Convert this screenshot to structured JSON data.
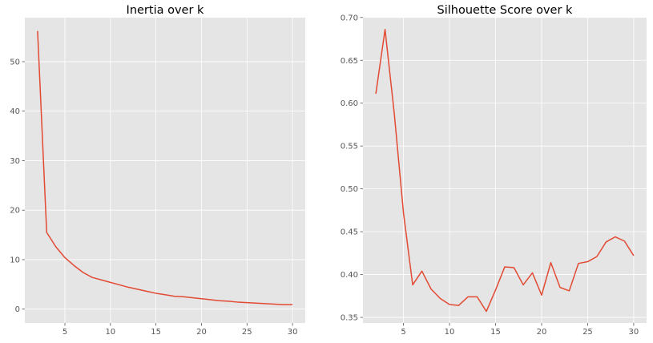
{
  "chart_data": [
    {
      "type": "line",
      "title": "Inertia over k",
      "xlabel": "",
      "ylabel": "",
      "xlim": [
        0.6,
        31.4
      ],
      "ylim": [
        -2.8,
        58.9
      ],
      "xticks": [
        5,
        10,
        15,
        20,
        25,
        30
      ],
      "yticks": [
        0,
        10,
        20,
        30,
        40,
        50
      ],
      "ytick_decimals": 0,
      "grid": true,
      "color": "#E24A33",
      "series": [
        {
          "x": [
            2,
            3,
            4,
            5,
            6,
            7,
            8,
            9,
            10,
            11,
            12,
            13,
            14,
            15,
            16,
            17,
            18,
            19,
            20,
            21,
            22,
            23,
            24,
            25,
            26,
            27,
            28,
            29,
            30
          ],
          "y": [
            56.2,
            15.5,
            12.6,
            10.4,
            8.8,
            7.4,
            6.4,
            5.9,
            5.4,
            4.9,
            4.4,
            4.0,
            3.6,
            3.2,
            2.9,
            2.6,
            2.5,
            2.3,
            2.1,
            1.9,
            1.7,
            1.6,
            1.4,
            1.3,
            1.2,
            1.1,
            1.0,
            0.9,
            0.9
          ]
        }
      ]
    },
    {
      "type": "line",
      "title": "Silhouette Score over k",
      "xlabel": "",
      "ylabel": "",
      "xlim": [
        0.6,
        31.4
      ],
      "ylim": [
        0.3435,
        0.6998
      ],
      "xticks": [
        5,
        10,
        15,
        20,
        25,
        30
      ],
      "yticks": [
        0.35,
        0.4,
        0.45,
        0.5,
        0.55,
        0.6,
        0.65,
        0.7
      ],
      "ytick_decimals": 2,
      "grid": true,
      "color": "#E24A33",
      "series": [
        {
          "x": [
            2,
            3,
            4,
            5,
            6,
            7,
            8,
            9,
            10,
            11,
            12,
            13,
            14,
            15,
            16,
            17,
            18,
            19,
            20,
            21,
            22,
            23,
            24,
            25,
            26,
            27,
            28,
            29,
            30
          ],
          "y": [
            0.611,
            0.686,
            0.588,
            0.472,
            0.388,
            0.404,
            0.383,
            0.372,
            0.365,
            0.364,
            0.374,
            0.374,
            0.357,
            0.382,
            0.409,
            0.408,
            0.388,
            0.402,
            0.376,
            0.414,
            0.385,
            0.381,
            0.413,
            0.415,
            0.421,
            0.438,
            0.444,
            0.439,
            0.422
          ]
        }
      ]
    }
  ]
}
